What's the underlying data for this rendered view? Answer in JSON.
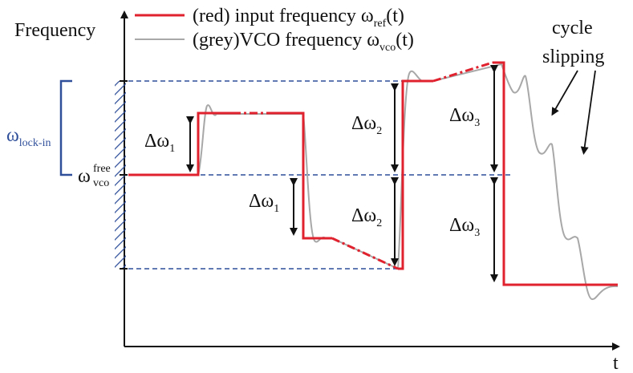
{
  "axes": {
    "y_label": "Frequency",
    "x_label": "t"
  },
  "legend": {
    "input": {
      "prefix": "(red) input frequency ω",
      "sub": "ref",
      "suffix": "(t)",
      "color": "#e0212e"
    },
    "vco": {
      "prefix": "(grey)VCO frequency ω",
      "sub": "vco",
      "suffix": "(t)",
      "color": "#a8a8a8"
    }
  },
  "bracket": {
    "label": "ω",
    "sub": "lock-in",
    "color": "#2f4f9a"
  },
  "free": {
    "base": "ω",
    "sup": "free",
    "sub": "vco"
  },
  "annotations": {
    "cycle_slipping_line1": "cycle",
    "cycle_slipping_line2": "slipping"
  },
  "deltas": [
    {
      "id": "d1-up",
      "base": "Δω",
      "sub": "1"
    },
    {
      "id": "d1-down",
      "base": "Δω",
      "sub": "1"
    },
    {
      "id": "d2-up",
      "base": "Δω",
      "sub": "2"
    },
    {
      "id": "d2-down",
      "base": "Δω",
      "sub": "2"
    },
    {
      "id": "d3-up",
      "base": "Δω",
      "sub": "3"
    },
    {
      "id": "d3-down",
      "base": "Δω",
      "sub": "3"
    }
  ],
  "colors": {
    "dashed_level": "#2f4f9a",
    "axis": "#111111",
    "arrow": "#111111"
  }
}
